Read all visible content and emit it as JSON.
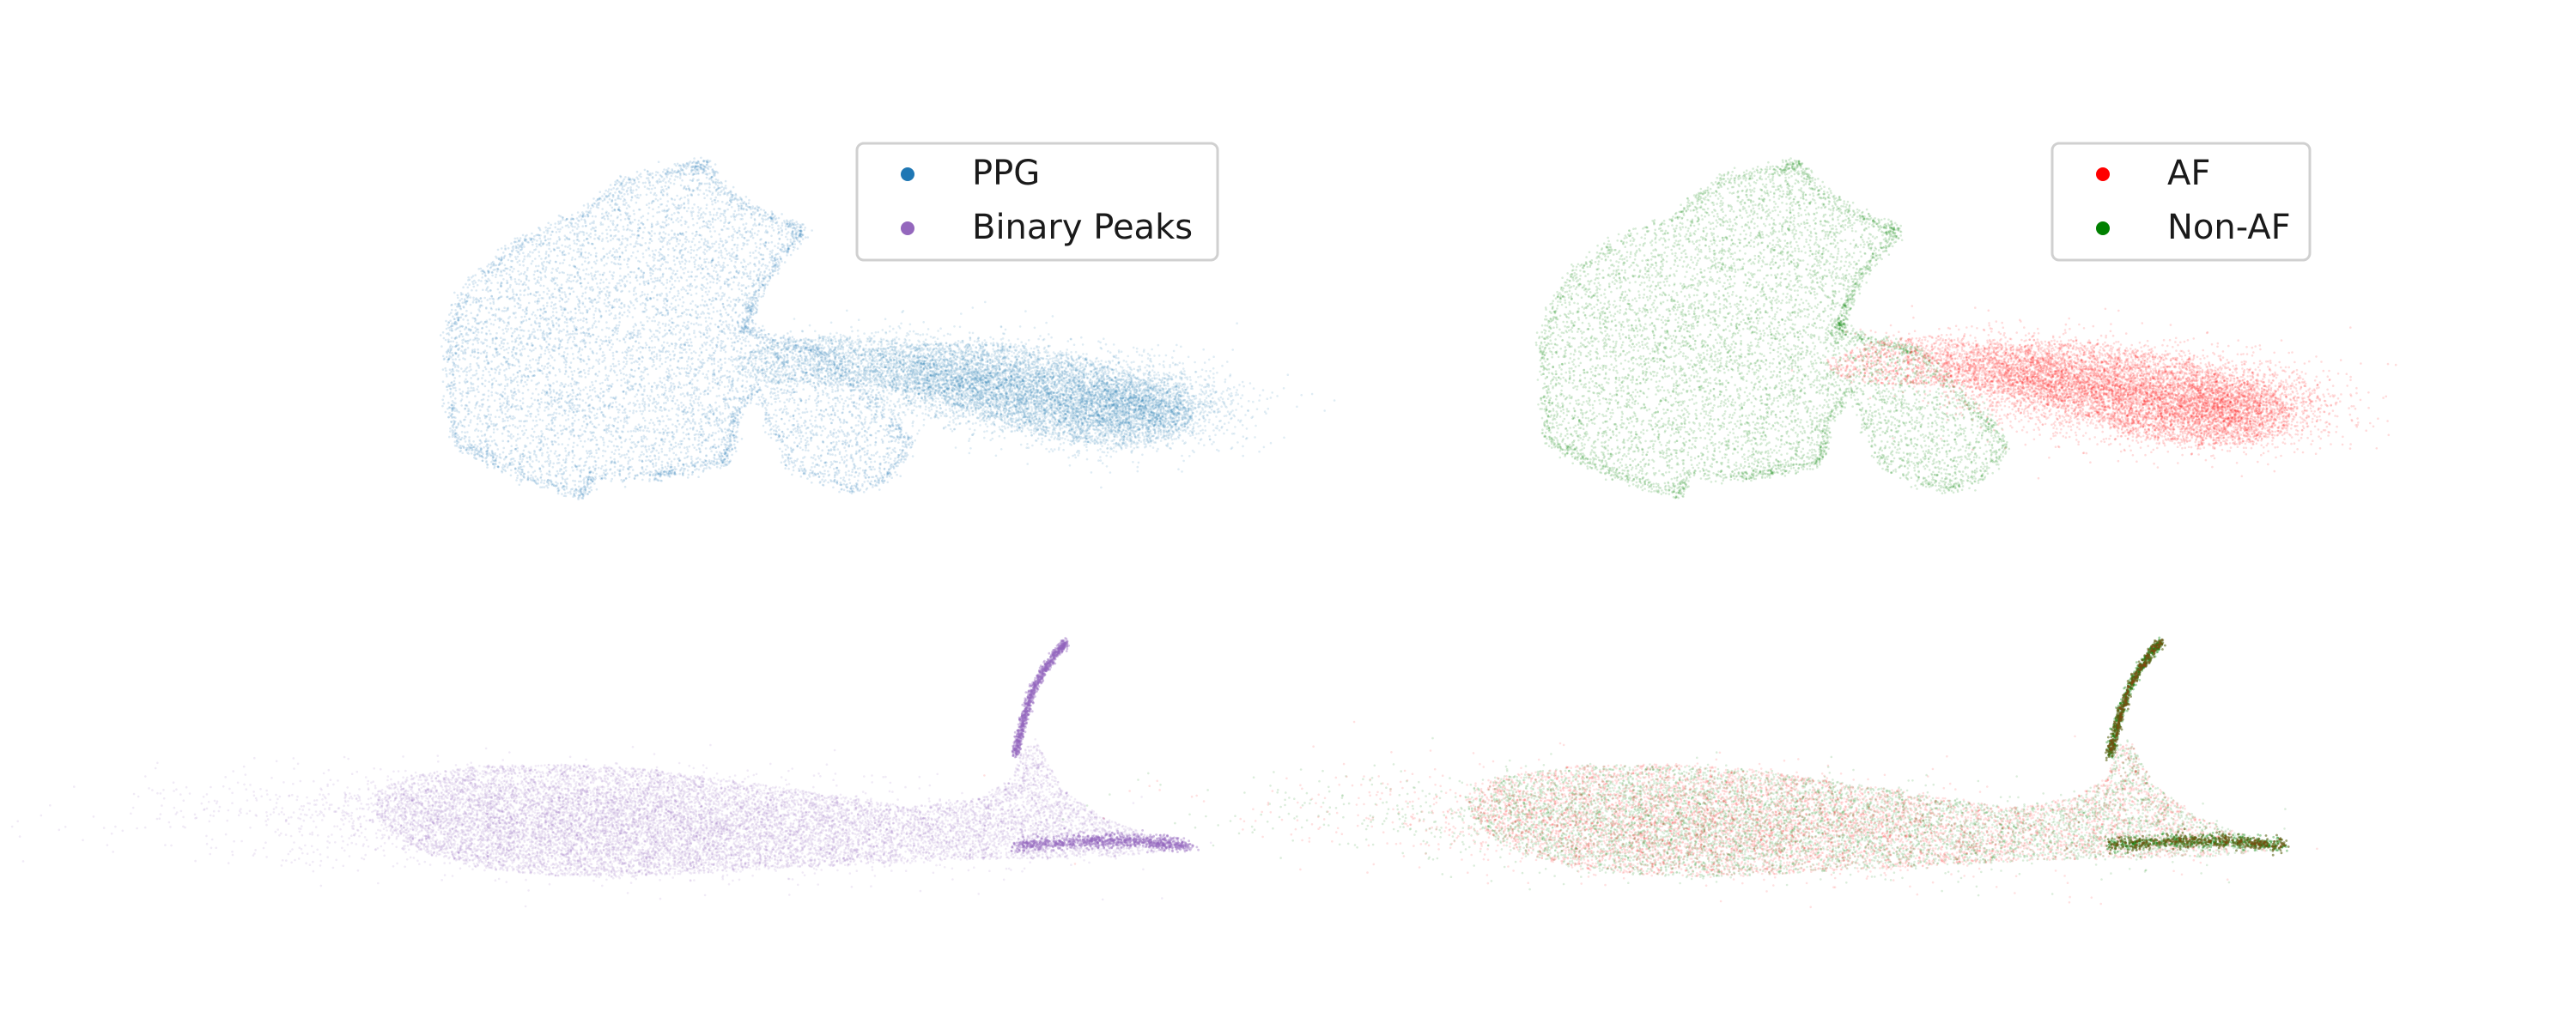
{
  "chart_data": [
    {
      "type": "scatter",
      "panel": "top-left",
      "title": "",
      "xlabel": "",
      "ylabel": "",
      "axes_visible": false,
      "grid": false,
      "legend_position": "upper-right",
      "series": [
        {
          "name": "PPG",
          "color": "#1f77b4",
          "shape": "flower-shaped cloud (left) with a dense elongated tail extending right",
          "approx_points": 40000
        }
      ],
      "legend": [
        {
          "label": "PPG",
          "color": "#1f77b4"
        },
        {
          "label": "Binary Peaks",
          "color": "#9467bd"
        }
      ]
    },
    {
      "type": "scatter",
      "panel": "top-right",
      "title": "",
      "xlabel": "",
      "ylabel": "",
      "axes_visible": false,
      "grid": false,
      "legend_position": "upper-right",
      "series": [
        {
          "name": "Non-AF",
          "color": "#008000",
          "shape": "concentrated in the flower-shaped left cloud"
        },
        {
          "name": "AF",
          "color": "#ff0000",
          "shape": "concentrated in the right elongated tail"
        }
      ],
      "legend": [
        {
          "label": "AF",
          "color": "#ff0000"
        },
        {
          "label": "Non-AF",
          "color": "#008000"
        }
      ]
    },
    {
      "type": "scatter",
      "panel": "bottom-left",
      "title": "",
      "xlabel": "",
      "ylabel": "",
      "axes_visible": false,
      "grid": false,
      "series": [
        {
          "name": "Binary Peaks",
          "color": "#9467bd",
          "shape": "elongated horizontal band tapering to the right with a thin upward curved branch",
          "approx_points": 40000
        }
      ]
    },
    {
      "type": "scatter",
      "panel": "bottom-right",
      "title": "",
      "xlabel": "",
      "ylabel": "",
      "axes_visible": false,
      "grid": false,
      "series": [
        {
          "name": "Non-AF",
          "color": "#008000",
          "shape": "mixed throughout the elongated band"
        },
        {
          "name": "AF",
          "color": "#ff0000",
          "shape": "mixed throughout the elongated band"
        }
      ]
    }
  ],
  "legends": {
    "top_left": {
      "items": [
        {
          "label": "PPG",
          "color": "#1f77b4"
        },
        {
          "label": "Binary Peaks",
          "color": "#9467bd"
        }
      ]
    },
    "top_right": {
      "items": [
        {
          "label": "AF",
          "color": "#ff0000"
        },
        {
          "label": "Non-AF",
          "color": "#008000"
        }
      ]
    }
  }
}
